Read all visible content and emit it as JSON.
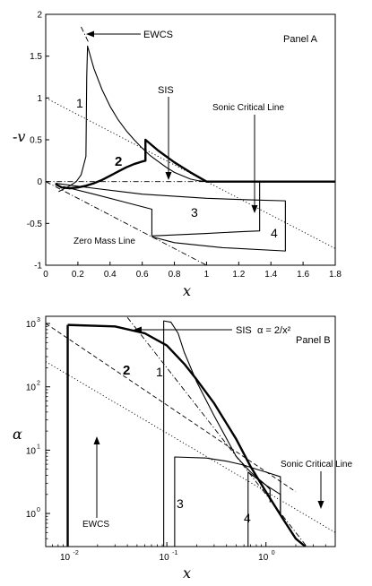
{
  "chart_data": [
    {
      "panel": "A",
      "type": "line",
      "panel_label": "Panel A",
      "xlabel": "x",
      "ylabel": "-v",
      "xlim": [
        0,
        1.8
      ],
      "ylim": [
        -1,
        2
      ],
      "xticks": [
        "0",
        "0.2",
        "0.4",
        "0.6",
        "0.8",
        "1",
        "1.2",
        "1.4",
        "1.6",
        "1.8"
      ],
      "yticks": [
        "-1",
        "-0.5",
        "0",
        "0.5",
        "1",
        "1.5",
        "2"
      ],
      "annotations": {
        "ewcs": "EWCS",
        "sis": "SIS",
        "sonic": "Sonic Critical Line",
        "zero_mass": "Zero Mass Line"
      },
      "curve_labels": {
        "c1": "1",
        "c2": "2",
        "c3": "3",
        "c4": "4"
      },
      "series": [
        {
          "style": "dashdot-thin",
          "x": [
            0.0,
            1.0
          ],
          "y": [
            0.0,
            0.0
          ]
        },
        {
          "style": "dotted",
          "x": [
            0.0,
            1.8
          ],
          "y": [
            1.0,
            -0.8
          ]
        },
        {
          "style": "dashdot",
          "x": [
            0.0,
            1.0
          ],
          "y": [
            0.0,
            -1.0
          ]
        },
        {
          "style": "dashdot",
          "x": [
            0.22,
            0.27
          ],
          "y": [
            1.85,
            1.65
          ]
        },
        {
          "style": "thick",
          "x": [
            0.06,
            0.1,
            0.15,
            0.2,
            0.25,
            0.3,
            0.35,
            0.4,
            0.45,
            0.5,
            0.55,
            0.6,
            0.62,
            0.62,
            0.7,
            0.8,
            0.9,
            1.0,
            1.8
          ],
          "y": [
            -0.03,
            -0.07,
            -0.08,
            -0.07,
            -0.05,
            -0.02,
            0.02,
            0.07,
            0.12,
            0.17,
            0.21,
            0.24,
            0.25,
            0.5,
            0.37,
            0.23,
            0.11,
            0.0,
            0.0
          ]
        },
        {
          "style": "thin",
          "x": [
            0.08,
            0.11,
            0.15,
            0.19,
            0.22,
            0.25,
            0.255,
            0.26,
            0.3,
            0.35,
            0.4,
            0.45,
            0.5,
            0.55,
            0.6,
            0.65,
            0.7,
            0.75,
            0.8,
            0.85,
            0.9,
            0.95,
            1.0
          ],
          "y": [
            -0.12,
            -0.09,
            -0.05,
            0.0,
            0.08,
            0.3,
            1.25,
            1.62,
            1.35,
            1.1,
            0.9,
            0.74,
            0.61,
            0.5,
            0.4,
            0.31,
            0.24,
            0.17,
            0.11,
            0.07,
            0.03,
            0.01,
            0.0
          ]
        },
        {
          "style": "thin",
          "x": [
            0.11,
            0.3,
            0.5,
            0.66,
            0.66,
            1.0,
            1.2,
            1.33,
            1.33
          ],
          "y": [
            -0.06,
            -0.15,
            -0.25,
            -0.33,
            -0.65,
            -0.62,
            -0.6,
            -0.59,
            0.0
          ]
        },
        {
          "style": "thin",
          "x": [
            0.06,
            0.3,
            0.6,
            1.0,
            1.3,
            1.49,
            1.49,
            1.1,
            0.8,
            0.66
          ],
          "y": [
            -0.02,
            -0.08,
            -0.15,
            -0.2,
            -0.22,
            -0.23,
            -0.83,
            -0.79,
            -0.73,
            -0.66
          ]
        }
      ]
    },
    {
      "panel": "B",
      "type": "line",
      "panel_label": "Panel B",
      "xlabel": "x",
      "ylabel": "α",
      "xscale": "log",
      "yscale": "log",
      "xlim": [
        0.006,
        5
      ],
      "ylim": [
        0.3,
        1300
      ],
      "xticks": [
        0.01,
        0.1,
        1
      ],
      "yticks": [
        1,
        10,
        100,
        1000
      ],
      "annotations": {
        "sis": "SIS",
        "sis_formula": "α = 2/x²",
        "sonic": "Sonic Critical Line",
        "ewcs": "EWCS"
      },
      "curve_labels": {
        "c1": "1",
        "c2": "2",
        "c3": "3",
        "c4": "4"
      },
      "series": [
        {
          "style": "dashdot",
          "x": [
            0.04,
            3.0
          ],
          "y": [
            1250,
            0.222
          ]
        },
        {
          "style": "dashed",
          "x": [
            0.006,
            2.0
          ],
          "y": [
            1000,
            2.2
          ]
        },
        {
          "style": "dotted",
          "x": [
            0.006,
            5.0
          ],
          "y": [
            250,
            0.5
          ]
        },
        {
          "style": "thick",
          "x": [
            0.01,
            0.03,
            0.06,
            0.1,
            0.15,
            0.2,
            0.3,
            0.5,
            0.7,
            1.0,
            1.5,
            2.0,
            2.5
          ],
          "y": [
            950,
            900,
            700,
            450,
            230,
            130,
            55,
            15,
            5.5,
            2.2,
            0.8,
            0.4,
            0.3
          ]
        },
        {
          "style": "thick",
          "x": [
            0.01,
            0.01
          ],
          "y": [
            950,
            0.3
          ]
        },
        {
          "style": "thin",
          "x": [
            0.093,
            0.093,
            0.11,
            0.13,
            0.15,
            0.2,
            0.3,
            0.5,
            0.7,
            1.0,
            1.4,
            1.4
          ],
          "y": [
            0.3,
            1100,
            1050,
            700,
            350,
            120,
            35,
            8,
            4.5,
            2.8,
            2.0,
            1.0
          ]
        },
        {
          "style": "thin",
          "x": [
            0.12,
            0.12,
            0.25,
            0.4,
            0.6,
            0.8,
            1.0,
            1.4,
            1.4
          ],
          "y": [
            0.3,
            7.8,
            7.5,
            6.7,
            5.8,
            5.0,
            4.5,
            3.8,
            1.0
          ]
        },
        {
          "style": "thin",
          "x": [
            0.66,
            0.66,
            0.8,
            1.0,
            1.1,
            1.1
          ],
          "y": [
            0.3,
            4.5,
            3.6,
            2.8,
            2.4,
            1.5
          ]
        }
      ]
    }
  ]
}
